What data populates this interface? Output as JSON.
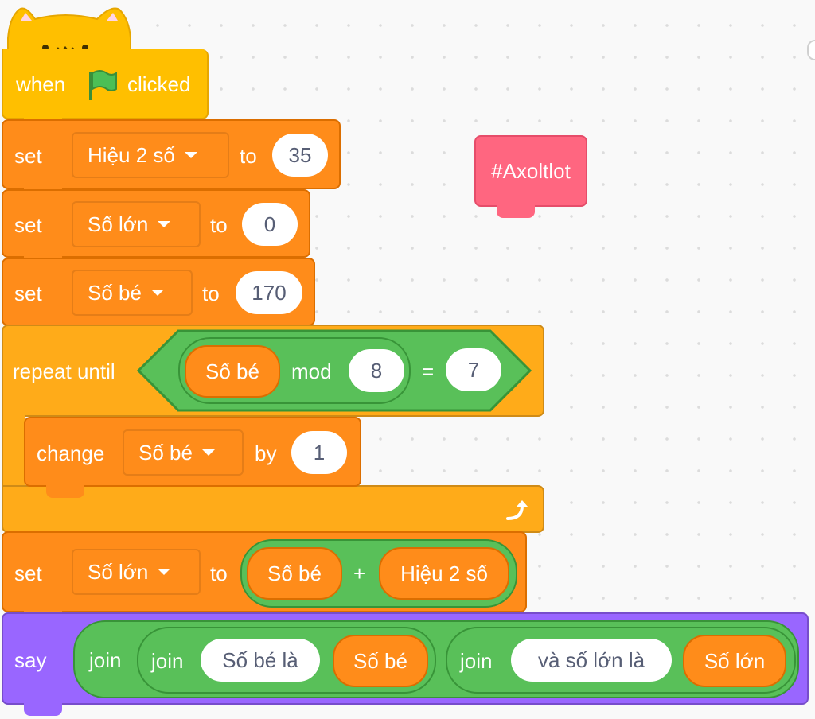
{
  "hat_block": {
    "when_label": "when",
    "clicked_label": "clicked",
    "flag_icon": "green-flag-icon"
  },
  "set_diff": {
    "set_label": "set",
    "variable": "Hiệu 2 số",
    "to_label": "to",
    "value": "35"
  },
  "set_big": {
    "set_label": "set",
    "variable": "Số lớn",
    "to_label": "to",
    "value": "0"
  },
  "set_small": {
    "set_label": "set",
    "variable": "Số bé",
    "to_label": "to",
    "value": "170"
  },
  "repeat_until": {
    "label": "repeat until",
    "condition": {
      "left_reporter": "Số bé",
      "mod_label": "mod",
      "mod_value": "8",
      "equals_label": "=",
      "right_value": "7"
    },
    "loop_icon": "loop-arrow-icon"
  },
  "change_small": {
    "change_label": "change",
    "variable": "Số bé",
    "by_label": "by",
    "value": "1"
  },
  "set_big_sum": {
    "set_label": "set",
    "variable": "Số lớn",
    "to_label": "to",
    "left_reporter": "Số bé",
    "plus_label": "+",
    "right_reporter": "Hiệu 2 số"
  },
  "say_block": {
    "say_label": "say",
    "join_outer_label": "join",
    "join1": {
      "label": "join",
      "text": "Số bé là",
      "reporter": "Số bé"
    },
    "join2": {
      "label": "join",
      "text": "và số lớn là",
      "reporter": "Số lớn"
    }
  },
  "comment_tag": {
    "label": "#Axoltlot"
  },
  "colors": {
    "events": "#ffbf00",
    "variables": "#ff8c1a",
    "control": "#ffab19",
    "operators": "#59c059",
    "looks": "#9966ff",
    "tag": "#ff6680"
  }
}
